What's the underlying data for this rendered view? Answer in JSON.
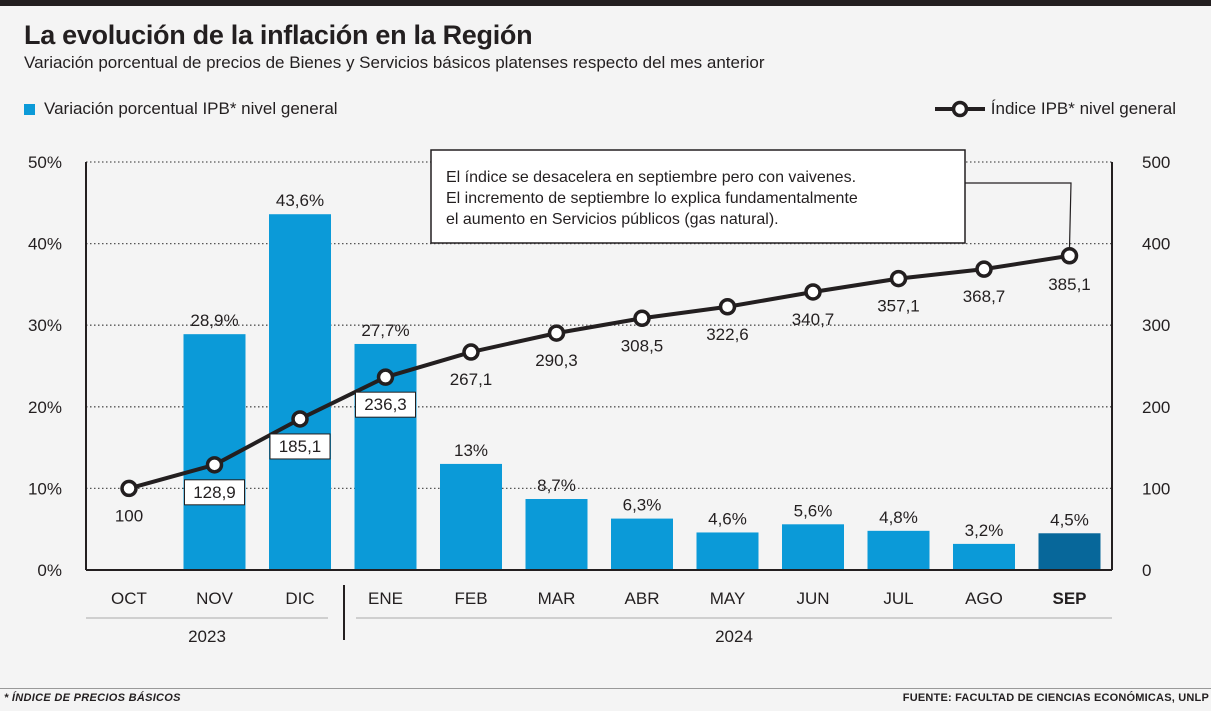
{
  "header": {
    "title": "La evolución de la inflación en la Región",
    "subtitle": "Variación porcentual de precios de Bienes y Servicios básicos platenses respecto del mes anterior"
  },
  "legend": {
    "bars": "Variación porcentual IPB* nivel general",
    "line": "Índice IPB* nivel general"
  },
  "annotation": {
    "lines": [
      "El índice se desacelera en septiembre pero con vaivenes.",
      "El incremento de septiembre lo explica fundamentalmente",
      "el aumento en Servicios públicos (gas natural)."
    ]
  },
  "footer": {
    "note": "* ÍNDICE DE PRECIOS BÁSICOS",
    "source": "FUENTE: FACULTAD DE CIENCIAS ECONÓMICAS, UNLP"
  },
  "colors": {
    "bar": "#0b9ad8",
    "bar_highlight": "#07679a",
    "line": "#231f20",
    "background": "#f4f4f4"
  },
  "chart_data": {
    "type": "bar+line",
    "categories": [
      "OCT",
      "NOV",
      "DIC",
      "ENE",
      "FEB",
      "MAR",
      "ABR",
      "MAY",
      "JUN",
      "JUL",
      "AGO",
      "SEP"
    ],
    "highlight_category": "SEP",
    "years": [
      {
        "label": "2023",
        "from": "OCT",
        "to": "DIC"
      },
      {
        "label": "2024",
        "from": "ENE",
        "to": "SEP"
      }
    ],
    "series": [
      {
        "name": "Variación porcentual IPB* nivel general",
        "type": "bar",
        "axis": "left",
        "values": [
          null,
          28.9,
          43.6,
          27.7,
          13,
          8.7,
          6.3,
          4.6,
          5.6,
          4.8,
          3.2,
          4.5
        ],
        "labels": [
          "",
          "28,9%",
          "43,6%",
          "27,7%",
          "13%",
          "8,7%",
          "6,3%",
          "4,6%",
          "5,6%",
          "4,8%",
          "3,2%",
          "4,5%"
        ]
      },
      {
        "name": "Índice IPB* nivel general",
        "type": "line",
        "axis": "right",
        "values": [
          100,
          128.9,
          185.1,
          236.3,
          267.1,
          290.3,
          308.5,
          322.6,
          340.7,
          357.1,
          368.7,
          385.1
        ],
        "labels": [
          "100",
          "128,9",
          "185,1",
          "236,3",
          "267,1",
          "290,3",
          "308,5",
          "322,6",
          "340,7",
          "357,1",
          "368,7",
          "385,1"
        ]
      }
    ],
    "left_axis": {
      "range": [
        0,
        50
      ],
      "ticks": [
        0,
        10,
        20,
        30,
        40,
        50
      ],
      "tick_labels": [
        "0%",
        "10%",
        "20%",
        "30%",
        "40%",
        "50%"
      ]
    },
    "right_axis": {
      "range": [
        0,
        500
      ],
      "ticks": [
        0,
        100,
        200,
        300,
        400,
        500
      ],
      "tick_labels": [
        "0",
        "100",
        "200",
        "300",
        "400",
        "500"
      ]
    },
    "grid": true
  }
}
